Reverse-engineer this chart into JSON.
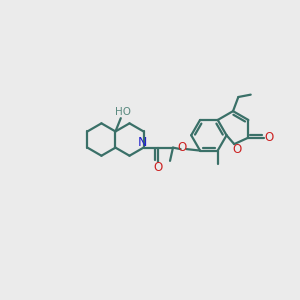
{
  "background_color": "#ebebeb",
  "bond_color": "#3a7068",
  "bond_width": 1.6,
  "N_color": "#2222cc",
  "O_color": "#cc2222",
  "H_color": "#5a8a80",
  "figsize": [
    3.0,
    3.0
  ],
  "dpi": 100,
  "xlim": [
    0,
    10
  ],
  "ylim": [
    0,
    10
  ]
}
